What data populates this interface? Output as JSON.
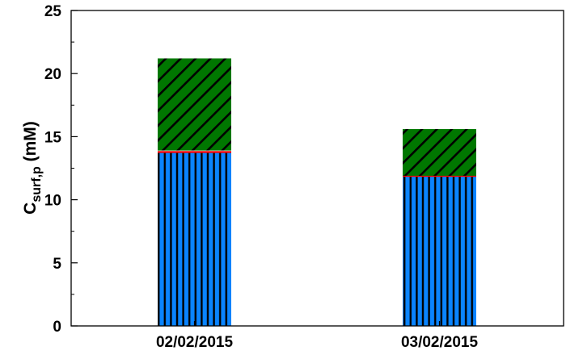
{
  "chart_data": {
    "type": "bar",
    "stacked": true,
    "title": "",
    "xlabel": "",
    "ylabel": {
      "main": "C",
      "sub": "surf,p",
      "unit": " (mM)"
    },
    "categories": [
      "02/02/2015",
      "03/02/2015"
    ],
    "ylim": [
      0,
      25
    ],
    "yticks": [
      0,
      5,
      10,
      15,
      20,
      25
    ],
    "grid": false,
    "series": [
      {
        "values": [
          13.75,
          11.85
        ],
        "color": "#0a84ff",
        "hatch": "vertical"
      },
      {
        "values": [
          0.15,
          0.05
        ],
        "color": "#ff0000",
        "hatch": "none"
      },
      {
        "values": [
          7.3,
          3.7
        ],
        "color": "#007700",
        "hatch": "diagonal"
      }
    ]
  }
}
